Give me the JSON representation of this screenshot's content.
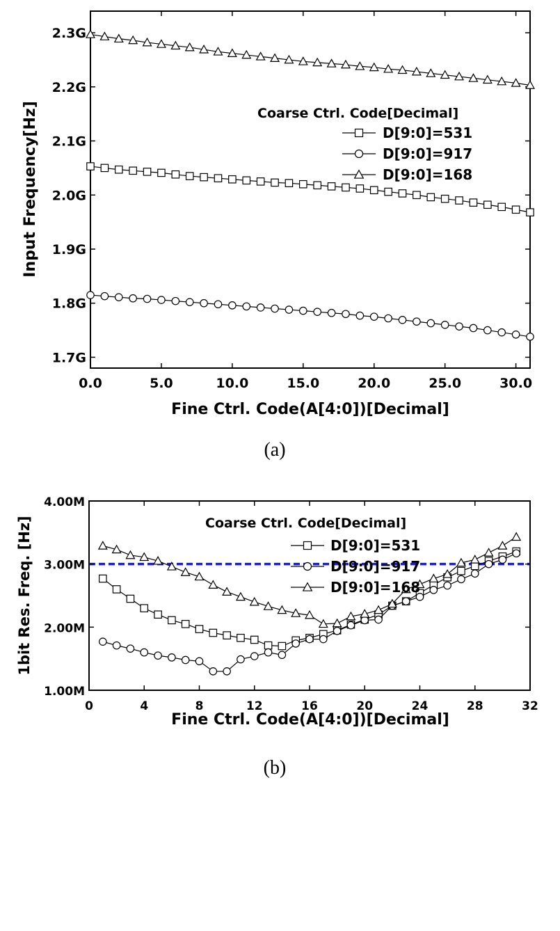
{
  "chart_data": [
    {
      "type": "line",
      "caption": "(a)",
      "xlabel": "Fine Ctrl. Code(A[4:0])[Decimal]",
      "ylabel": "Input Frequency[Hz]",
      "xlim": [
        0,
        31
      ],
      "ylim": [
        1.68,
        2.34
      ],
      "xticks": [
        0,
        5,
        10,
        15,
        20,
        25,
        30
      ],
      "xtick_labels": [
        "0.0",
        "5.0",
        "10.0",
        "15.0",
        "20.0",
        "25.0",
        "30.0"
      ],
      "yticks": [
        1.7,
        1.8,
        1.9,
        2.0,
        2.1,
        2.2,
        2.3
      ],
      "ytick_labels": [
        "1.7G",
        "1.8G",
        "1.9G",
        "2.0G",
        "2.1G",
        "2.2G",
        "2.3G"
      ],
      "grid": false,
      "legend": {
        "title": "Coarse Ctrl. Code[Decimal]",
        "position": "right"
      },
      "x": [
        0,
        1,
        2,
        3,
        4,
        5,
        6,
        7,
        8,
        9,
        10,
        11,
        12,
        13,
        14,
        15,
        16,
        17,
        18,
        19,
        20,
        21,
        22,
        23,
        24,
        25,
        26,
        27,
        28,
        29,
        30,
        31
      ],
      "series": [
        {
          "name": "D[9:0]=531",
          "marker": "square",
          "values": [
            2.053,
            2.05,
            2.047,
            2.045,
            2.043,
            2.041,
            2.038,
            2.035,
            2.033,
            2.031,
            2.029,
            2.027,
            2.025,
            2.023,
            2.022,
            2.02,
            2.018,
            2.016,
            2.014,
            2.012,
            2.009,
            2.006,
            2.003,
            2.0,
            1.996,
            1.993,
            1.99,
            1.986,
            1.982,
            1.978,
            1.973,
            1.968
          ]
        },
        {
          "name": "D[9:0]=917",
          "marker": "circle",
          "values": [
            1.815,
            1.813,
            1.811,
            1.809,
            1.808,
            1.806,
            1.804,
            1.802,
            1.8,
            1.798,
            1.796,
            1.794,
            1.792,
            1.79,
            1.788,
            1.786,
            1.784,
            1.782,
            1.78,
            1.777,
            1.775,
            1.772,
            1.769,
            1.766,
            1.763,
            1.76,
            1.757,
            1.754,
            1.75,
            1.746,
            1.742,
            1.738
          ]
        },
        {
          "name": "D[9:0]=168",
          "marker": "triangle",
          "values": [
            2.297,
            2.293,
            2.289,
            2.286,
            2.282,
            2.279,
            2.276,
            2.273,
            2.269,
            2.265,
            2.262,
            2.259,
            2.256,
            2.253,
            2.25,
            2.247,
            2.245,
            2.243,
            2.241,
            2.238,
            2.236,
            2.233,
            2.231,
            2.228,
            2.225,
            2.222,
            2.219,
            2.216,
            2.213,
            2.21,
            2.207,
            2.203
          ]
        }
      ]
    },
    {
      "type": "line",
      "caption": "(b)",
      "xlabel": "Fine Ctrl. Code(A[4:0])[Decimal]",
      "ylabel": "1bit Res. Freq. [Hz]",
      "xlim": [
        0,
        32
      ],
      "ylim": [
        1.0,
        4.0
      ],
      "xticks": [
        0,
        4,
        8,
        12,
        16,
        20,
        24,
        28,
        32
      ],
      "xtick_labels": [
        "0",
        "4",
        "8",
        "12",
        "16",
        "20",
        "24",
        "28",
        "32"
      ],
      "yticks": [
        1.0,
        2.0,
        3.0,
        4.0
      ],
      "ytick_labels": [
        "1.00M",
        "2.00M",
        "3.00M",
        "4.00M"
      ],
      "grid": false,
      "reference_line": {
        "y": 3.0,
        "color": "#1a1adc",
        "style": "dashed"
      },
      "legend": {
        "title": "Coarse Ctrl. Code[Decimal]",
        "position": "top-center"
      },
      "x": [
        1,
        2,
        3,
        4,
        5,
        6,
        7,
        8,
        9,
        10,
        11,
        12,
        13,
        14,
        15,
        16,
        17,
        18,
        19,
        20,
        21,
        22,
        23,
        24,
        25,
        26,
        27,
        28,
        29,
        30,
        31
      ],
      "series": [
        {
          "name": "D[9:0]=531",
          "marker": "square",
          "values": [
            2.77,
            2.6,
            2.45,
            2.3,
            2.2,
            2.11,
            2.05,
            1.97,
            1.91,
            1.87,
            1.83,
            1.8,
            1.71,
            1.7,
            1.79,
            1.83,
            1.89,
            1.95,
            2.04,
            2.12,
            2.2,
            2.34,
            2.41,
            2.54,
            2.67,
            2.79,
            2.89,
            2.97,
            3.05,
            3.12,
            3.2
          ]
        },
        {
          "name": "D[9:0]=917",
          "marker": "circle",
          "values": [
            1.77,
            1.71,
            1.66,
            1.6,
            1.55,
            1.52,
            1.48,
            1.46,
            1.3,
            1.3,
            1.49,
            1.54,
            1.6,
            1.56,
            1.74,
            1.81,
            1.81,
            1.94,
            2.03,
            2.11,
            2.12,
            2.34,
            2.41,
            2.48,
            2.59,
            2.66,
            2.76,
            2.85,
            3.0,
            3.07,
            3.17
          ]
        },
        {
          "name": "D[9:0]=168",
          "marker": "triangle",
          "values": [
            3.29,
            3.23,
            3.14,
            3.11,
            3.05,
            2.96,
            2.87,
            2.8,
            2.67,
            2.56,
            2.48,
            2.4,
            2.33,
            2.27,
            2.22,
            2.19,
            2.05,
            2.06,
            2.17,
            2.21,
            2.27,
            2.37,
            2.6,
            2.68,
            2.77,
            2.84,
            3.02,
            3.07,
            3.18,
            3.29,
            3.43
          ]
        }
      ]
    }
  ]
}
